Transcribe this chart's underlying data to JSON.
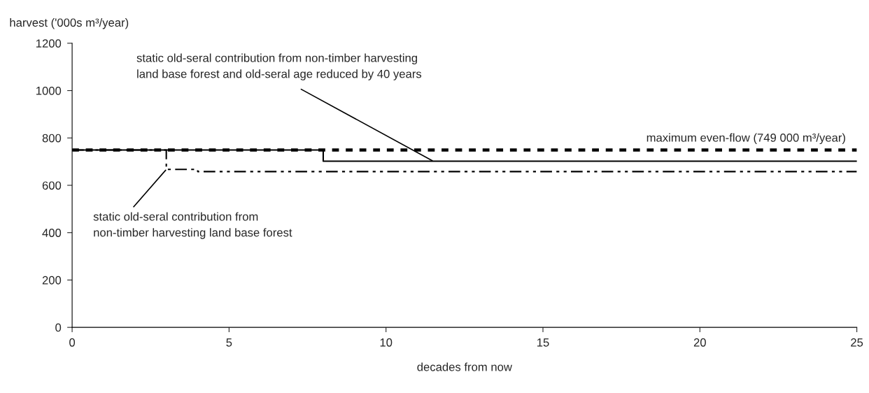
{
  "chart_data": {
    "type": "step",
    "xlabel": "decades from now",
    "ylabel": "harvest ('000s m³/year)",
    "xlim": [
      0,
      25
    ],
    "xticks": [
      0,
      5,
      10,
      15,
      20,
      25
    ],
    "ylim": [
      0,
      1200
    ],
    "yticks": [
      0,
      200,
      400,
      600,
      800,
      1000,
      1200
    ],
    "grid": false,
    "legend": false,
    "series": [
      {
        "name": "maximum even-flow (749 000 m³/year)",
        "color": "#000000",
        "line_style": "dashed",
        "x": [
          0,
          25
        ],
        "values": [
          749,
          749
        ]
      },
      {
        "color": "#000000",
        "line_style": "solid",
        "x": [
          0,
          8,
          25
        ],
        "values": [
          749,
          702,
          702
        ]
      },
      {
        "color": "#000000",
        "line_style": "dashdot",
        "x": [
          0,
          3,
          4,
          25
        ],
        "values": [
          749,
          667,
          658,
          658
        ]
      }
    ],
    "annotations": [
      {
        "text": "static old-seral contribution from non-timber harvesting\nland base forest and old-seral age reduced by 40 years",
        "x": 11.5,
        "y": 702
      },
      {
        "text": "static old-seral contribution from\nnon-timber harvesting land base forest",
        "x": 3,
        "y": 667
      }
    ]
  }
}
